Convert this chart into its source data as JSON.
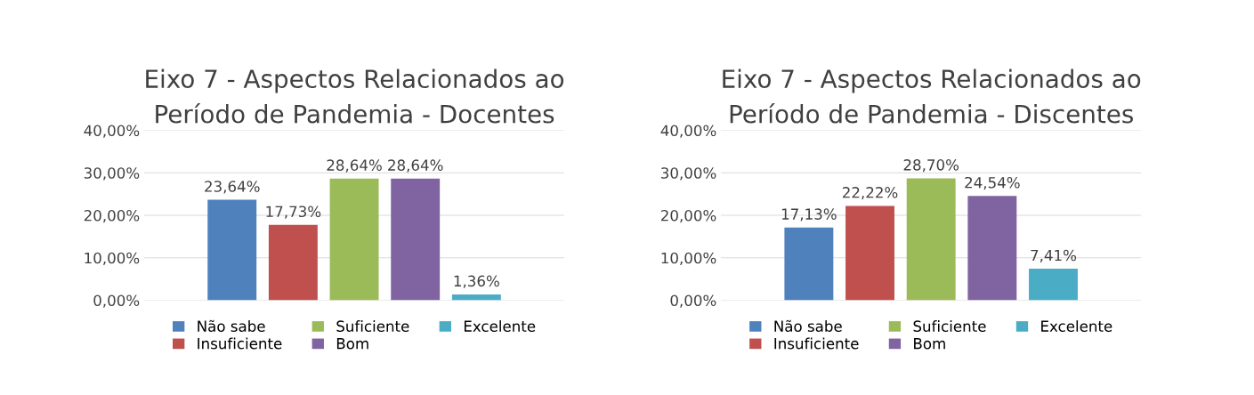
{
  "chart_data": [
    {
      "type": "bar",
      "title": "Eixo 7 - Aspectos Relacionados ao\nPeríodo de Pandemia - Docentes",
      "categories": [
        null
      ],
      "series": [
        {
          "name": "Não sabe",
          "color": "#4f81bd",
          "values": [
            23.64
          ],
          "value_labels": [
            "23,64%"
          ]
        },
        {
          "name": "Insuficiente",
          "color": "#c0504d",
          "values": [
            17.73
          ],
          "value_labels": [
            "17,73%"
          ]
        },
        {
          "name": "Suficiente",
          "color": "#9bbb59",
          "values": [
            28.64
          ],
          "value_labels": [
            "28,64%"
          ]
        },
        {
          "name": "Bom",
          "color": "#8064a2",
          "values": [
            28.64
          ],
          "value_labels": [
            "28,64%"
          ]
        },
        {
          "name": "Excelente",
          "color": "#4bacc6",
          "values": [
            1.36
          ],
          "value_labels": [
            "1,36%"
          ]
        }
      ],
      "ylim": [
        0,
        40
      ],
      "yticks": [
        {
          "value": 0,
          "label": "0,00%"
        },
        {
          "value": 10,
          "label": "10,00%"
        },
        {
          "value": 20,
          "label": "20,00%"
        },
        {
          "value": 30,
          "label": "30,00%"
        },
        {
          "value": 40,
          "label": "40,00%"
        }
      ],
      "grid": "y",
      "legend": "bottom"
    },
    {
      "type": "bar",
      "title": "Eixo 7 - Aspectos Relacionados ao\nPeríodo de Pandemia - Discentes",
      "categories": [
        null
      ],
      "series": [
        {
          "name": "Não sabe",
          "color": "#4f81bd",
          "values": [
            17.13
          ],
          "value_labels": [
            "17,13%"
          ]
        },
        {
          "name": "Insuficiente",
          "color": "#c0504d",
          "values": [
            22.22
          ],
          "value_labels": [
            "22,22%"
          ]
        },
        {
          "name": "Suficiente",
          "color": "#9bbb59",
          "values": [
            28.7
          ],
          "value_labels": [
            "28,70%"
          ]
        },
        {
          "name": "Bom",
          "color": "#8064a2",
          "values": [
            24.54
          ],
          "value_labels": [
            "24,54%"
          ]
        },
        {
          "name": "Excelente",
          "color": "#4bacc6",
          "values": [
            7.41
          ],
          "value_labels": [
            "7,41%"
          ]
        }
      ],
      "ylim": [
        0,
        40
      ],
      "yticks": [
        {
          "value": 0,
          "label": "0,00%"
        },
        {
          "value": 10,
          "label": "10,00%"
        },
        {
          "value": 20,
          "label": "20,00%"
        },
        {
          "value": 30,
          "label": "30,00%"
        },
        {
          "value": 40,
          "label": "40,00%"
        }
      ],
      "grid": "y",
      "legend": "bottom"
    }
  ]
}
